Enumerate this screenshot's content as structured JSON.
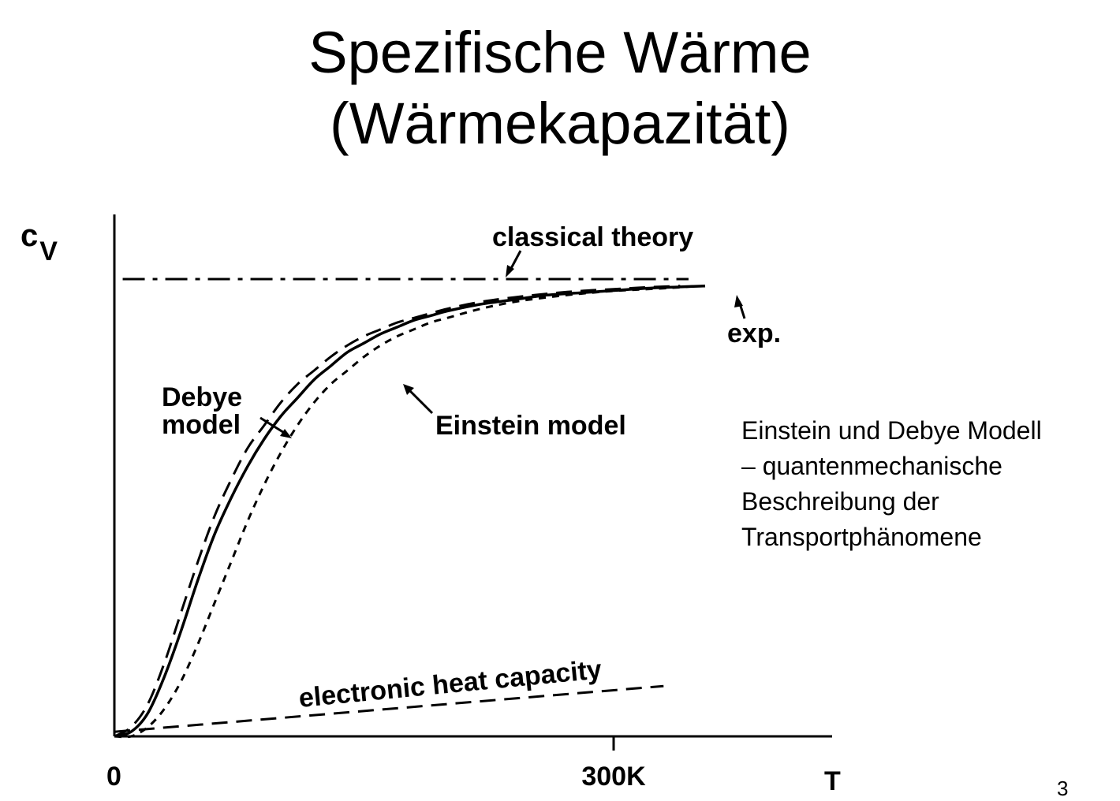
{
  "slide": {
    "title_lines": [
      "Spezifische Wärme",
      "(Wärmekapazität)"
    ],
    "side_note_lines": [
      "Einstein und Debye Modell",
      "– quantenmechanische",
      "Beschreibung der",
      "Transportphänomene"
    ],
    "page_number": "3"
  },
  "chart_data": {
    "type": "line",
    "title": "",
    "xlabel": "T",
    "ylabel_main": "c",
    "ylabel_sub": "V",
    "x_ticks": [
      {
        "value": 0,
        "label": "0"
      },
      {
        "value": 300,
        "label": "300K"
      }
    ],
    "xlim": [
      0,
      370
    ],
    "ylim": [
      0,
      1.07
    ],
    "grid": false,
    "legend": "none (curves labeled directly)",
    "series": [
      {
        "name": "exp.",
        "style": "solid",
        "x": [
          0,
          10,
          20,
          30,
          40,
          50,
          60,
          70,
          80,
          90,
          100,
          110,
          120,
          130,
          140,
          150,
          160,
          170,
          180,
          190,
          200,
          220,
          240,
          260,
          280,
          300,
          320,
          340,
          355
        ],
        "y": [
          0,
          0.01,
          0.05,
          0.13,
          0.23,
          0.34,
          0.44,
          0.52,
          0.59,
          0.65,
          0.7,
          0.74,
          0.78,
          0.81,
          0.84,
          0.86,
          0.88,
          0.895,
          0.91,
          0.92,
          0.93,
          0.945,
          0.955,
          0.965,
          0.97,
          0.975,
          0.98,
          0.983,
          0.985
        ]
      },
      {
        "name": "Debye model",
        "style": "dashed",
        "x": [
          0,
          10,
          20,
          30,
          40,
          50,
          60,
          70,
          80,
          90,
          100,
          110,
          120,
          130,
          140,
          150,
          160,
          170,
          180,
          200,
          220,
          240,
          260,
          280,
          300,
          320,
          340
        ],
        "y": [
          0,
          0.02,
          0.07,
          0.16,
          0.27,
          0.38,
          0.48,
          0.56,
          0.63,
          0.68,
          0.73,
          0.77,
          0.8,
          0.83,
          0.855,
          0.875,
          0.89,
          0.905,
          0.915,
          0.935,
          0.95,
          0.96,
          0.968,
          0.974,
          0.978,
          0.982,
          0.985
        ]
      },
      {
        "name": "Einstein model",
        "style": "short-dashed",
        "x": [
          0,
          10,
          20,
          30,
          40,
          50,
          60,
          70,
          80,
          90,
          100,
          110,
          120,
          130,
          140,
          150,
          160,
          170,
          180,
          190,
          200,
          220,
          240,
          260,
          280,
          300,
          320,
          340,
          350
        ],
        "y": [
          0,
          0.0,
          0.02,
          0.06,
          0.12,
          0.2,
          0.29,
          0.38,
          0.47,
          0.55,
          0.62,
          0.68,
          0.73,
          0.77,
          0.8,
          0.83,
          0.855,
          0.875,
          0.89,
          0.905,
          0.915,
          0.935,
          0.95,
          0.96,
          0.968,
          0.974,
          0.978,
          0.982,
          0.985
        ]
      },
      {
        "name": "classical theory",
        "style": "dash-dot",
        "x": [
          5,
          345
        ],
        "y": [
          1.0,
          1.0
        ]
      },
      {
        "name": "electronic heat capacity",
        "style": "dashed",
        "x": [
          0,
          330
        ],
        "y": [
          0.01,
          0.11
        ]
      }
    ],
    "annotations": [
      {
        "text": "classical theory",
        "points_to": "classical theory"
      },
      {
        "text": "exp.",
        "points_to": "exp."
      },
      {
        "text": "Debye",
        "points_to": "Debye model"
      },
      {
        "text": "model",
        "points_to": "Debye model"
      },
      {
        "text": "Einstein model",
        "points_to": "Einstein model"
      },
      {
        "text": "electronic heat capacity",
        "points_to": "electronic heat capacity"
      }
    ],
    "colors": {
      "ink": "#000000",
      "background": "#ffffff"
    }
  }
}
